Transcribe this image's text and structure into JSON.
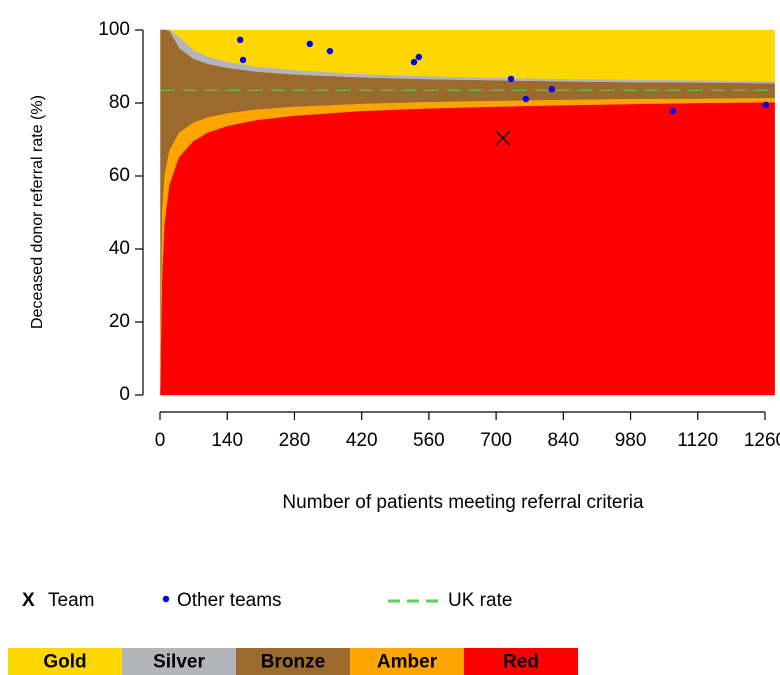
{
  "chart_data": {
    "type": "funnel",
    "x_label": "Number of patients meeting referral criteria",
    "y_label": "Deceased donor referral rate (%)",
    "xlim": [
      0,
      1280
    ],
    "xticks": [
      0,
      140,
      280,
      420,
      560,
      700,
      840,
      980,
      1120,
      1260
    ],
    "ylim": [
      0,
      100
    ],
    "yticks": [
      0,
      20,
      40,
      60,
      80,
      100
    ],
    "x": [
      1,
      5,
      10,
      20,
      40,
      70,
      100,
      140,
      200,
      280,
      420,
      560,
      700,
      840,
      980,
      1120,
      1280
    ],
    "series": [
      {
        "name": "Gold",
        "color": "#ffd700",
        "values": [
          100,
          100,
          100,
          100,
          100,
          100,
          100,
          100,
          100,
          100,
          100,
          100,
          100,
          100,
          100,
          100,
          100
        ]
      },
      {
        "name": "Silver",
        "color": "#b4b4bc",
        "values": [
          100,
          100,
          100,
          100,
          98.0,
          94.4,
          92.6,
          91.2,
          89.9,
          88.9,
          87.8,
          87.2,
          86.8,
          86.5,
          86.3,
          86.1,
          85.9
        ]
      },
      {
        "name": "Bronze",
        "color": "#9c6a2c",
        "values": [
          100,
          100,
          100,
          99.6,
          94.9,
          92.0,
          90.6,
          89.5,
          88.5,
          87.7,
          86.9,
          86.4,
          86.1,
          85.8,
          85.6,
          85.5,
          85.3
        ]
      },
      {
        "name": "Amber",
        "color": "#ffa500",
        "values": [
          10.0,
          50.6,
          60.2,
          67.0,
          71.8,
          74.6,
          76.0,
          77.1,
          78.1,
          78.9,
          79.7,
          80.2,
          80.5,
          80.8,
          81.0,
          81.1,
          81.3
        ]
      },
      {
        "name": "Red",
        "color": "#ff0000",
        "values": [
          0,
          31.8,
          46.9,
          57.5,
          65.1,
          69.5,
          71.8,
          73.6,
          75.2,
          76.4,
          77.7,
          78.4,
          78.9,
          79.3,
          79.6,
          79.9,
          80.1
        ]
      }
    ],
    "reference_line": {
      "name": "UK rate",
      "value": 83.5,
      "color": "#5ecf5e"
    },
    "other_teams": {
      "name": "Other teams",
      "color": "#0000ee",
      "x": [
        167,
        173,
        312,
        354,
        529,
        539,
        731,
        762,
        816,
        1068,
        1262
      ],
      "y": [
        97.3,
        91.8,
        96.2,
        94.2,
        91.2,
        92.6,
        86.6,
        81.1,
        83.8,
        77.8,
        79.5
      ]
    },
    "team": {
      "name": "Team",
      "marker": "X",
      "x": 714,
      "y": 70.4
    }
  }
}
